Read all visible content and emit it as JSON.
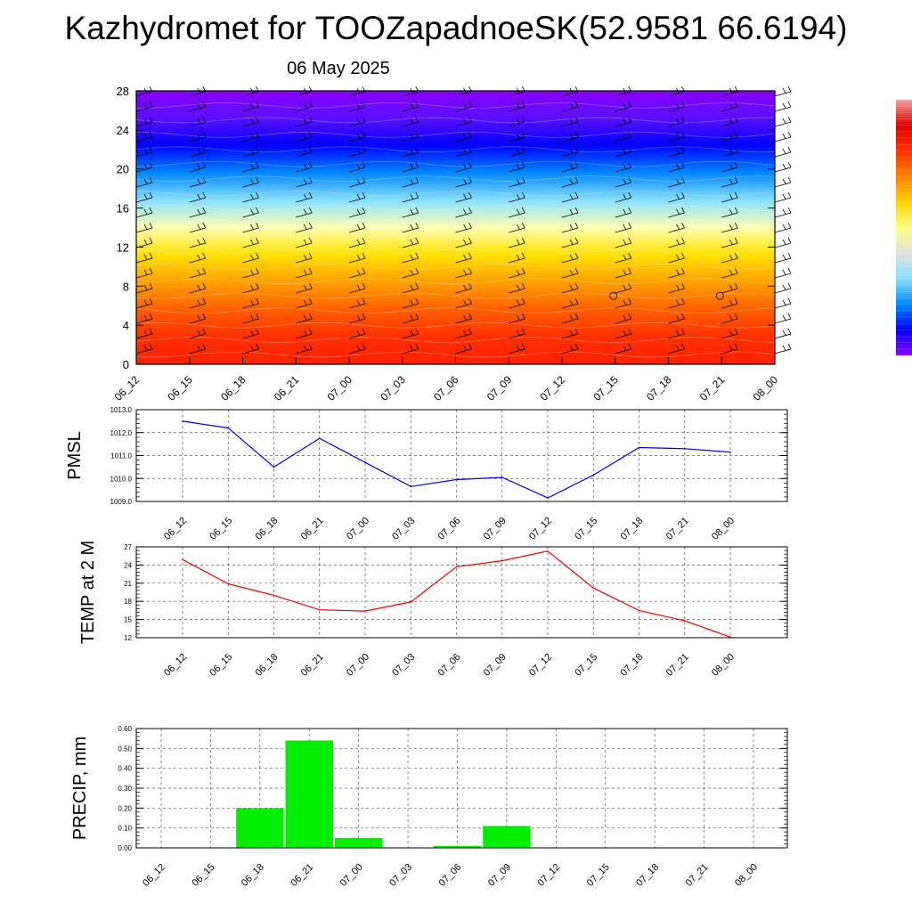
{
  "header": {
    "title": "Kazhydromet for TOOZapadnoeSK(52.9581 66.6194)",
    "date": "06 May 2025"
  },
  "colors": {
    "pmsl_line": "#0000dd",
    "temp_line": "#ee0000",
    "precip_bar": "#00ee00",
    "cross_section_palette": [
      "#8a00ff",
      "#5a10ff",
      "#0000ff",
      "#0088ff",
      "#88e0ff",
      "#ffffb0",
      "#ffe000",
      "#ffa000",
      "#ff6000",
      "#ff3000",
      "#ff2000"
    ]
  },
  "chart_data": [
    {
      "type": "heatmap",
      "name": "cross-section",
      "x": [
        "06_12",
        "06_15",
        "06_18",
        "06_21",
        "07_00",
        "07_03",
        "07_06",
        "07_09",
        "07_12",
        "07_15",
        "07_18",
        "07_21",
        "08_00"
      ],
      "yticks": [
        0,
        4,
        8,
        12,
        16,
        20,
        24,
        28
      ],
      "ylim": [
        0,
        28
      ],
      "overlay": "wind barbs and contour lines",
      "colorbar": "vertical, right side",
      "grid": false
    },
    {
      "type": "line",
      "name": "pmsl",
      "ylabel": "PMSL",
      "x": [
        "06_12",
        "06_15",
        "06_18",
        "06_21",
        "07_00",
        "07_03",
        "07_06",
        "07_09",
        "07_12",
        "07_15",
        "07_18",
        "07_21",
        "08_00"
      ],
      "values": [
        1012.5,
        1012.2,
        1010.5,
        1011.75,
        1010.7,
        1009.65,
        1009.95,
        1010.05,
        1009.15,
        1010.15,
        1011.35,
        1011.3,
        1011.15
      ],
      "ylim": [
        1009.0,
        1013.0
      ],
      "yticks": [
        "1009.0",
        "1010.0",
        "1011.0",
        "1012.0",
        "1013.0"
      ],
      "grid": true
    },
    {
      "type": "line",
      "name": "temp",
      "ylabel": "TEMP at 2 M",
      "x": [
        "06_12",
        "06_15",
        "06_18",
        "06_21",
        "07_00",
        "07_03",
        "07_06",
        "07_09",
        "07_12",
        "07_15",
        "07_18",
        "07_21",
        "08_00"
      ],
      "values": [
        24.9,
        20.9,
        19.0,
        16.6,
        16.4,
        17.9,
        23.7,
        24.7,
        26.3,
        20.2,
        16.5,
        14.8,
        12.1
      ],
      "ylim": [
        12,
        27
      ],
      "yticks": [
        "12",
        "15",
        "18",
        "21",
        "24",
        "27"
      ],
      "grid": true
    },
    {
      "type": "bar",
      "name": "precip",
      "ylabel": "PRECIP, mm",
      "categories": [
        "06_12",
        "06_15",
        "06_18",
        "06_21",
        "07_00",
        "07_03",
        "07_06",
        "07_09",
        "07_12",
        "07_15",
        "07_18",
        "07_21",
        "08_00"
      ],
      "values": [
        0,
        0,
        0.2,
        0.54,
        0.05,
        0,
        0.01,
        0.11,
        0,
        0,
        0,
        0,
        0
      ],
      "ylim": [
        0,
        0.6
      ],
      "yticks": [
        "0.00",
        "0.10",
        "0.20",
        "0.30",
        "0.40",
        "0.50",
        "0.60"
      ],
      "grid": true
    }
  ]
}
